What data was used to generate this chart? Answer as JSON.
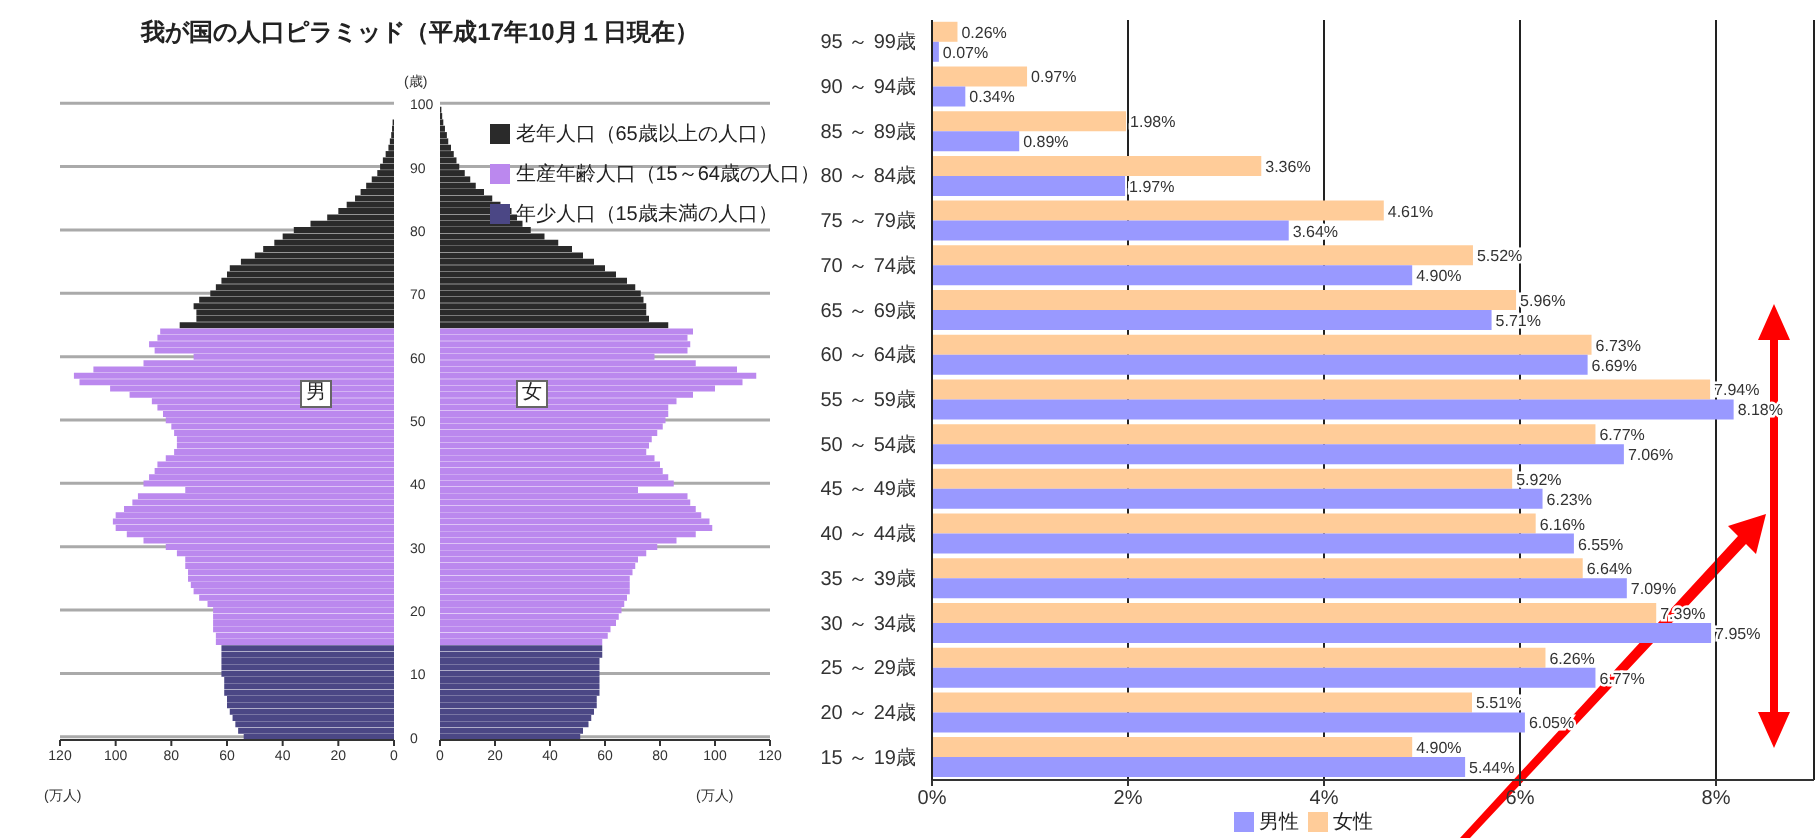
{
  "chart_data": [
    {
      "type": "bar",
      "orientation": "horizontal",
      "stacked": true,
      "title": "我が国の人口ピラミッド（平成17年10月１日現在）",
      "xlabel": "(万人)",
      "ylabel": "(歳)",
      "xlim": [
        120,
        0
      ],
      "xticks": [
        120,
        100,
        80,
        60,
        40,
        20,
        0
      ],
      "grid": "y",
      "annotations": [
        "男"
      ],
      "categories": [
        "100",
        null,
        null,
        null,
        null,
        null,
        null,
        null,
        null,
        null,
        "90",
        null,
        null,
        null,
        null,
        null,
        null,
        null,
        null,
        null,
        "80",
        null,
        null,
        null,
        null,
        null,
        null,
        null,
        null,
        null,
        "70",
        null,
        null,
        null,
        null,
        null,
        null,
        null,
        null,
        null,
        "60",
        null,
        null,
        null,
        null,
        null,
        null,
        null,
        null,
        null,
        "50",
        null,
        null,
        null,
        null,
        null,
        null,
        null,
        null,
        null,
        "40",
        null,
        null,
        null,
        null,
        null,
        null,
        null,
        null,
        null,
        "30",
        null,
        null,
        null,
        null,
        null,
        null,
        null,
        null,
        null,
        "20",
        null,
        null,
        null,
        null,
        null,
        null,
        null,
        null,
        null,
        "10",
        null,
        null,
        null,
        null,
        null,
        null,
        null,
        null,
        null,
        "0"
      ],
      "series": [
        {
          "color": "#2a2a2a",
          "values": [
            null,
            null,
            null,
            0.5,
            0.7,
            1,
            1.5,
            2,
            3,
            4,
            5,
            6,
            8,
            10,
            12,
            14,
            17,
            20,
            24,
            30,
            36,
            40,
            43,
            47,
            50,
            55,
            59,
            60,
            62,
            64,
            66,
            70,
            72,
            71,
            71,
            77,
            null,
            null,
            null,
            null,
            null,
            null,
            null,
            null,
            null,
            null,
            null,
            null,
            null,
            null,
            null,
            null,
            null,
            null,
            null,
            null,
            null,
            null,
            null,
            null,
            null,
            null,
            null,
            null,
            null,
            null,
            null,
            null,
            null,
            null,
            null,
            null,
            null,
            null,
            null,
            null,
            null,
            null,
            null,
            null,
            null,
            null,
            null,
            null,
            null,
            null,
            null,
            null,
            null,
            null,
            null,
            null,
            null,
            null,
            null,
            null,
            null,
            null,
            null,
            null,
            null
          ]
        },
        {
          "color": "#bb88ee",
          "values": [
            null,
            null,
            null,
            null,
            null,
            null,
            null,
            null,
            null,
            null,
            null,
            null,
            null,
            null,
            null,
            null,
            null,
            null,
            null,
            null,
            null,
            null,
            null,
            null,
            null,
            null,
            null,
            null,
            null,
            null,
            null,
            null,
            null,
            null,
            null,
            null,
            84,
            85,
            88,
            86,
            72,
            90,
            108,
            115,
            113,
            102,
            95,
            87,
            85,
            83,
            82,
            80,
            79,
            78,
            78,
            79,
            82,
            85,
            86,
            88,
            90,
            75,
            92,
            94,
            97,
            100,
            101,
            100,
            96,
            90,
            82,
            78,
            75,
            75,
            74,
            74,
            73,
            72,
            70,
            67,
            65,
            65,
            65,
            65,
            64,
            64,
            null,
            null,
            null,
            null,
            null,
            null,
            null,
            null,
            null,
            null,
            null,
            null,
            null,
            null,
            null
          ]
        },
        {
          "color": "#4b4785",
          "values": [
            null,
            null,
            null,
            null,
            null,
            null,
            null,
            null,
            null,
            null,
            null,
            null,
            null,
            null,
            null,
            null,
            null,
            null,
            null,
            null,
            null,
            null,
            null,
            null,
            null,
            null,
            null,
            null,
            null,
            null,
            null,
            null,
            null,
            null,
            null,
            null,
            null,
            null,
            null,
            null,
            null,
            null,
            null,
            null,
            null,
            null,
            null,
            null,
            null,
            null,
            null,
            null,
            null,
            null,
            null,
            null,
            null,
            null,
            null,
            null,
            null,
            null,
            null,
            null,
            null,
            null,
            null,
            null,
            null,
            null,
            null,
            null,
            null,
            null,
            null,
            null,
            null,
            null,
            null,
            null,
            null,
            null,
            null,
            null,
            null,
            null,
            62,
            62,
            62,
            62,
            62,
            61,
            61,
            61,
            60,
            60,
            59,
            58,
            57,
            56,
            54
          ]
        }
      ]
    },
    {
      "type": "bar",
      "orientation": "horizontal",
      "stacked": true,
      "xlabel": "(万人)",
      "xlim": [
        0,
        120
      ],
      "xticks": [
        0,
        20,
        40,
        60,
        80,
        100,
        120
      ],
      "grid": "y",
      "tick_labels": "x",
      "legend": "top right",
      "annotations": [
        "女"
      ],
      "categories": [
        "100",
        null,
        null,
        null,
        null,
        null,
        null,
        null,
        null,
        null,
        "90",
        null,
        null,
        null,
        null,
        null,
        null,
        null,
        null,
        null,
        "80",
        null,
        null,
        null,
        null,
        null,
        null,
        null,
        null,
        null,
        "70",
        null,
        null,
        null,
        null,
        null,
        null,
        null,
        null,
        null,
        "60",
        null,
        null,
        null,
        null,
        null,
        null,
        null,
        null,
        null,
        "50",
        null,
        null,
        null,
        null,
        null,
        null,
        null,
        null,
        null,
        "40",
        null,
        null,
        null,
        null,
        null,
        null,
        null,
        null,
        null,
        "30",
        null,
        null,
        null,
        null,
        null,
        null,
        null,
        null,
        null,
        "20",
        null,
        null,
        null,
        null,
        null,
        null,
        null,
        null,
        null,
        "10",
        null,
        null,
        null,
        null,
        null,
        null,
        null,
        null,
        null,
        "0"
      ],
      "series": [
        {
          "name": "老年人口（65歳以上の人口）",
          "color": "#2a2a2a",
          "values": [
            null,
            0.5,
            0.8,
            1.2,
            1.8,
            2.5,
            3,
            4,
            5,
            6,
            7,
            9,
            11,
            13,
            16,
            19,
            22,
            26,
            28,
            30,
            33,
            38,
            43,
            48,
            52,
            56,
            60,
            64,
            68,
            71,
            73,
            74,
            75,
            75,
            76,
            83,
            null,
            null,
            null,
            null,
            null,
            null,
            null,
            null,
            null,
            null,
            null,
            null,
            null,
            null,
            null,
            null,
            null,
            null,
            null,
            null,
            null,
            null,
            null,
            null,
            null,
            null,
            null,
            null,
            null,
            null,
            null,
            null,
            null,
            null,
            null,
            null,
            null,
            null,
            null,
            null,
            null,
            null,
            null,
            null,
            null,
            null,
            null,
            null,
            null,
            null,
            null,
            null,
            null,
            null,
            null,
            null,
            null,
            null,
            null,
            null,
            null,
            null,
            null,
            null,
            null
          ]
        },
        {
          "name": "生産年齢人口（15～64歳の人口）",
          "color": "#bb88ee",
          "values": [
            null,
            null,
            null,
            null,
            null,
            null,
            null,
            null,
            null,
            null,
            null,
            null,
            null,
            null,
            null,
            null,
            null,
            null,
            null,
            null,
            null,
            null,
            null,
            null,
            null,
            null,
            null,
            null,
            null,
            null,
            null,
            null,
            null,
            null,
            null,
            null,
            92,
            90,
            91,
            90,
            78,
            93,
            108,
            115,
            110,
            100,
            92,
            86,
            83,
            83,
            82,
            81,
            79,
            77,
            76,
            75,
            78,
            80,
            81,
            83,
            85,
            72,
            90,
            91,
            93,
            95,
            98,
            99,
            93,
            86,
            79,
            75,
            72,
            71,
            70,
            69,
            69,
            69,
            68,
            67,
            66,
            65,
            64,
            62,
            61,
            59,
            null,
            null,
            null,
            null,
            null,
            null,
            null,
            null,
            null,
            null,
            null,
            null,
            null,
            null,
            null
          ]
        },
        {
          "name": "年少人口（15歳未満の人口）",
          "color": "#4b4785",
          "values": [
            null,
            null,
            null,
            null,
            null,
            null,
            null,
            null,
            null,
            null,
            null,
            null,
            null,
            null,
            null,
            null,
            null,
            null,
            null,
            null,
            null,
            null,
            null,
            null,
            null,
            null,
            null,
            null,
            null,
            null,
            null,
            null,
            null,
            null,
            null,
            null,
            null,
            null,
            null,
            null,
            null,
            null,
            null,
            null,
            null,
            null,
            null,
            null,
            null,
            null,
            null,
            null,
            null,
            null,
            null,
            null,
            null,
            null,
            null,
            null,
            null,
            null,
            null,
            null,
            null,
            null,
            null,
            null,
            null,
            null,
            null,
            null,
            null,
            null,
            null,
            null,
            null,
            null,
            null,
            null,
            null,
            null,
            null,
            null,
            null,
            null,
            59,
            59,
            58,
            58,
            58,
            58,
            58,
            58,
            57,
            57,
            56,
            55,
            54,
            52,
            51
          ]
        }
      ]
    },
    {
      "type": "bar",
      "orientation": "horizontal",
      "xlim": [
        0,
        9
      ],
      "xticks": [
        {
          "value": 0,
          "label": "0%"
        },
        {
          "value": 2,
          "label": "2%"
        },
        {
          "value": 4,
          "label": "4%"
        },
        {
          "value": 6,
          "label": "6%"
        },
        {
          "value": 8,
          "label": "8%"
        }
      ],
      "grid": "x",
      "legend": "bottom",
      "categories": [
        "95 ～ 99歳",
        "90 ～ 94歳",
        "85 ～ 89歳",
        "80 ～ 84歳",
        "75 ～ 79歳",
        "70 ～ 74歳",
        "65 ～ 69歳",
        "60 ～ 64歳",
        "55 ～ 59歳",
        "50 ～ 54歳",
        "45 ～ 49歳",
        "40 ～ 44歳",
        "35 ～ 39歳",
        "30 ～ 34歳",
        "25 ～ 29歳",
        "20 ～ 24歳",
        "15 ～ 19歳"
      ],
      "series": [
        {
          "name": "女性",
          "color": "#ffcc99",
          "values": [
            0.26,
            0.97,
            1.98,
            3.36,
            4.61,
            5.52,
            5.96,
            6.73,
            7.94,
            6.77,
            5.92,
            6.16,
            6.64,
            7.39,
            6.26,
            5.51,
            4.9
          ],
          "value_labels": [
            "0.26%",
            "0.97%",
            "1.98%",
            "3.36%",
            "4.61%",
            "5.52%",
            "5.96%",
            "6.73%",
            "7.94%",
            "6.77%",
            "5.92%",
            "6.16%",
            "6.64%",
            "7.39%",
            "6.26%",
            "5.51%",
            "4.90%"
          ]
        },
        {
          "name": "男性",
          "color": "#9999ff",
          "values": [
            0.07,
            0.34,
            0.89,
            1.97,
            3.64,
            4.9,
            5.71,
            6.69,
            8.18,
            7.06,
            6.23,
            6.55,
            7.09,
            7.95,
            6.77,
            6.05,
            5.44
          ],
          "value_labels": [
            "0.07%",
            "0.34%",
            "0.89%",
            "1.97%",
            "3.64%",
            "4.90%",
            "5.71%",
            "6.69%",
            "8.18%",
            "7.06%",
            "6.23%",
            "6.55%",
            "7.09%",
            "7.95%",
            "6.77%",
            "6.05%",
            "5.44%"
          ]
        }
      ]
    }
  ]
}
